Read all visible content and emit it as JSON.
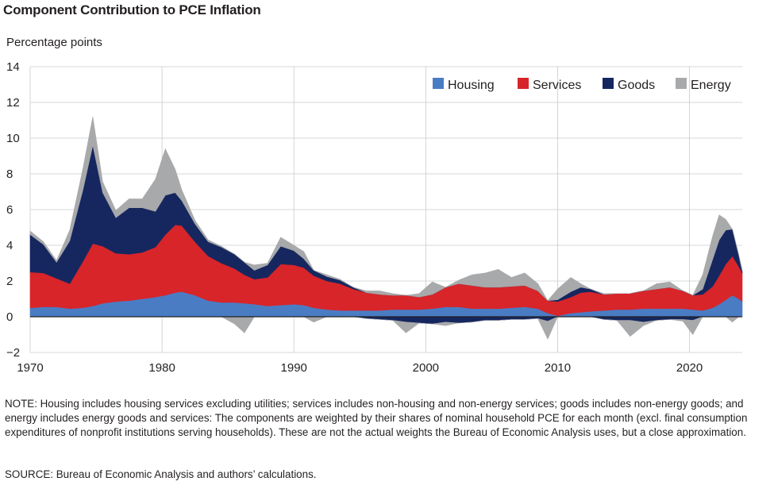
{
  "chart_title": "Component Contribution to PCE Inflation",
  "y_axis_label": "Percentage points",
  "note": "NOTE: Housing includes housing services excluding utilities; services includes non-housing and non-energy services; goods includes non-energy goods; and energy includes energy goods and services: The components are weighted by their shares of nominal household PCE for each month (excl. final consumption expenditures of nonprofit institutions serving households). These are not the actual weights the Bureau of Economic Analysis uses, but a close approximation.",
  "source": "SOURCE: Bureau of Economic Analysis and authors’ calculations.",
  "chart_data": {
    "type": "area",
    "stacked": true,
    "title": "Component Contribution to PCE Inflation",
    "ylabel": "Percentage points",
    "xlabel": "",
    "xlim": [
      1970,
      2024
    ],
    "ylim": [
      -2,
      14
    ],
    "x_ticks": [
      1970,
      1980,
      1990,
      2000,
      2010,
      2020
    ],
    "y_ticks": [
      -2,
      0,
      2,
      4,
      6,
      8,
      10,
      12,
      14
    ],
    "grid": true,
    "legend_position": "top-right",
    "x": [
      1970.0,
      1971.0,
      1972.0,
      1973.0,
      1974.0,
      1974.75,
      1975.5,
      1976.5,
      1977.5,
      1978.5,
      1979.5,
      1980.25,
      1981.0,
      1981.5,
      1982.5,
      1983.5,
      1984.5,
      1985.5,
      1986.25,
      1987.0,
      1988.0,
      1989.0,
      1990.0,
      1990.75,
      1991.5,
      1992.5,
      1993.5,
      1994.5,
      1995.5,
      1996.5,
      1997.5,
      1998.5,
      1999.5,
      2000.5,
      2001.5,
      2002.5,
      2003.5,
      2004.5,
      2005.5,
      2006.5,
      2007.5,
      2008.5,
      2009.25,
      2010.0,
      2011.0,
      2011.75,
      2012.5,
      2013.5,
      2014.5,
      2015.5,
      2016.5,
      2017.5,
      2018.5,
      2019.5,
      2020.25,
      2021.0,
      2021.75,
      2022.25,
      2022.75,
      2023.25,
      2023.75,
      2024.0
    ],
    "series": [
      {
        "name": "Housing",
        "color": "#4a7cc4",
        "values": [
          0.5,
          0.55,
          0.55,
          0.45,
          0.5,
          0.6,
          0.75,
          0.85,
          0.9,
          1.0,
          1.1,
          1.2,
          1.35,
          1.4,
          1.2,
          0.9,
          0.8,
          0.8,
          0.75,
          0.7,
          0.6,
          0.65,
          0.7,
          0.65,
          0.5,
          0.4,
          0.35,
          0.35,
          0.35,
          0.35,
          0.4,
          0.4,
          0.4,
          0.45,
          0.55,
          0.55,
          0.45,
          0.45,
          0.45,
          0.5,
          0.55,
          0.45,
          0.2,
          0.05,
          0.2,
          0.25,
          0.3,
          0.35,
          0.4,
          0.4,
          0.45,
          0.45,
          0.45,
          0.45,
          0.4,
          0.35,
          0.5,
          0.7,
          0.95,
          1.2,
          1.0,
          0.85
        ]
      },
      {
        "name": "Services",
        "color": "#d7252a",
        "values": [
          2.0,
          1.9,
          1.6,
          1.4,
          2.6,
          3.5,
          3.2,
          2.7,
          2.6,
          2.6,
          2.8,
          3.4,
          3.8,
          3.7,
          3.0,
          2.5,
          2.2,
          1.9,
          1.6,
          1.4,
          1.6,
          2.3,
          2.2,
          2.1,
          1.8,
          1.6,
          1.5,
          1.2,
          1.0,
          0.9,
          0.8,
          0.8,
          0.7,
          0.8,
          1.1,
          1.3,
          1.3,
          1.2,
          1.2,
          1.2,
          1.2,
          1.0,
          0.7,
          0.8,
          0.9,
          1.1,
          1.1,
          0.9,
          0.9,
          0.9,
          1.0,
          1.1,
          1.2,
          1.0,
          0.8,
          0.9,
          1.2,
          1.6,
          2.0,
          2.2,
          1.8,
          1.6
        ]
      },
      {
        "name": "Goods",
        "color": "#16275f",
        "values": [
          2.1,
          1.6,
          0.9,
          2.4,
          4.0,
          5.5,
          3.0,
          2.0,
          2.6,
          2.5,
          2.0,
          2.2,
          1.8,
          1.4,
          1.0,
          0.8,
          0.9,
          0.8,
          0.7,
          0.5,
          0.7,
          1.0,
          0.8,
          0.5,
          0.3,
          0.25,
          0.2,
          0.1,
          -0.1,
          -0.15,
          -0.2,
          -0.3,
          -0.35,
          -0.4,
          -0.3,
          -0.35,
          -0.3,
          -0.2,
          -0.2,
          -0.15,
          -0.15,
          -0.1,
          -0.25,
          0.1,
          0.3,
          0.3,
          0.15,
          -0.15,
          -0.2,
          -0.2,
          -0.3,
          -0.2,
          -0.15,
          -0.15,
          -0.2,
          0.3,
          1.5,
          2.0,
          1.9,
          1.5,
          0.6,
          0.1
        ]
      },
      {
        "name": "Energy",
        "color": "#a8a9ab",
        "values": [
          0.2,
          0.15,
          0.1,
          0.6,
          1.2,
          1.6,
          0.6,
          0.4,
          0.5,
          0.5,
          1.8,
          2.6,
          1.3,
          0.6,
          0.2,
          0.1,
          0.05,
          -0.4,
          -0.9,
          0.3,
          0.1,
          0.5,
          0.3,
          0.4,
          -0.3,
          0.1,
          0.05,
          0.0,
          0.1,
          0.2,
          0.1,
          -0.6,
          0.2,
          0.7,
          -0.2,
          0.2,
          0.6,
          0.8,
          1.0,
          0.5,
          0.7,
          0.4,
          -1.0,
          0.6,
          0.8,
          0.2,
          0.0,
          0.05,
          0.0,
          -0.9,
          -0.2,
          0.3,
          0.3,
          -0.1,
          -0.8,
          0.8,
          1.3,
          1.4,
          0.6,
          -0.3,
          0.0,
          0.1
        ]
      }
    ]
  }
}
